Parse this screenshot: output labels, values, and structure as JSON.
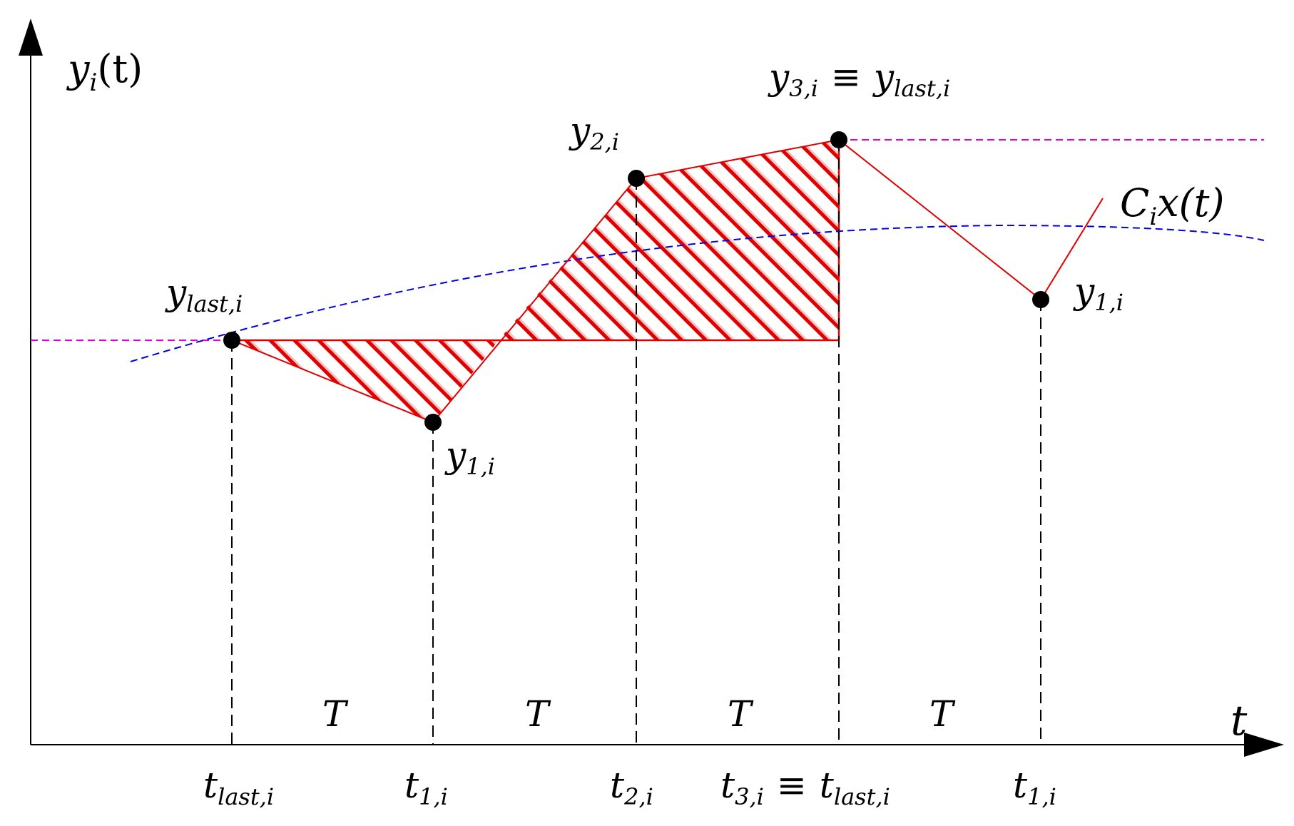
{
  "colors": {
    "ink": "#000000",
    "signal": "#e00000",
    "hold": "#e000e0",
    "estimate": "#0000e0",
    "hatch": "#e00000"
  },
  "axes": {
    "y_label": {
      "main": "y",
      "sub": "i",
      "rest": "(t)"
    },
    "x_label": "t"
  },
  "points": [
    {
      "id": "p0",
      "main": "y",
      "sub": "last,i"
    },
    {
      "id": "p1",
      "main": "y",
      "sub": "1,i"
    },
    {
      "id": "p2",
      "main": "y",
      "sub": "2,i"
    },
    {
      "id": "p3",
      "main": "y",
      "sub": "3,i",
      "equiv": "≡",
      "main2": "y",
      "sub2": "last,i"
    },
    {
      "id": "p4",
      "main": "y",
      "sub": "1,i"
    }
  ],
  "time_ticks": [
    {
      "main": "t",
      "sub": "last,i"
    },
    {
      "main": "t",
      "sub": "1,i"
    },
    {
      "main": "t",
      "sub": "2,i"
    },
    {
      "main": "t",
      "sub": "3,i",
      "equiv": "≡",
      "main2": "t",
      "sub2": "last,i"
    },
    {
      "main": "t",
      "sub": "1,i"
    }
  ],
  "intervals": [
    "T",
    "T",
    "T",
    "T"
  ],
  "curve_label": {
    "main": "C",
    "sub": "i",
    "rest": "x(t)"
  }
}
